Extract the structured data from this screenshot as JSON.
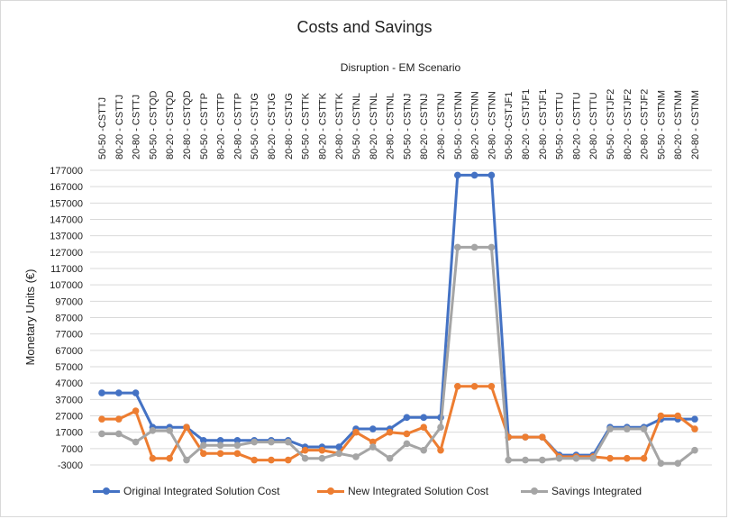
{
  "chart_data": {
    "type": "line",
    "title": "Costs and Savings",
    "subtitle": "Disruption - EM Scenario",
    "xlabel": "",
    "ylabel": "Monetary Units (€)",
    "ylim": [
      -3000,
      177000
    ],
    "yticks": [
      "177000",
      "167000",
      "157000",
      "147000",
      "137000",
      "127000",
      "117000",
      "107000",
      "97000",
      "87000",
      "77000",
      "67000",
      "57000",
      "47000",
      "37000",
      "27000",
      "17000",
      "7000",
      "-3000"
    ],
    "grid": true,
    "legend": "bottom",
    "categories": [
      "50-50 -CSTTJ",
      "80-20 - CSTTJ",
      "20-80 - CSTTJ",
      "50-50 - CSTQD",
      "80-20 - CSTQD",
      "20-80 - CSTQD",
      "50-50 - CSTTP",
      "80-20 - CSTTP",
      "20-80 - CSTTP",
      "50-50 - CSTJG",
      "80-20 - CSTJG",
      "20-80 - CSTJG",
      "50-50 - CSTTK",
      "80-20 - CSTTK",
      "20-80 - CSTTK",
      "50-50 - CSTNL",
      "80-20 - CSTNL",
      "20-80 - CSTNL",
      "50-50 - CSTNJ",
      "80-20 - CSTNJ",
      "20-80 - CSTNJ",
      "50-50 - CSTNN",
      "80-20 - CSTNN",
      "20-80 - CSTNN",
      "50-50 -CSTJF1",
      "80-20 - CSTJF1",
      "20-80 - CSTJF1",
      "50-50 - CSTTU",
      "80-20 - CSTTU",
      "20-80 - CSTTU",
      "50-50 - CSTJF2",
      "80-20 - CSTJF2",
      "20-80 - CSTJF2",
      "50-50 - CSTNM",
      "80-20 - CSTNM",
      "20-80 - CSTNM"
    ],
    "series": [
      {
        "name": "Original Integrated Solution Cost",
        "color": "#4472C4",
        "values": [
          41000,
          41000,
          41000,
          20000,
          20000,
          20000,
          12000,
          12000,
          12000,
          12000,
          12000,
          12000,
          8000,
          8000,
          8000,
          19000,
          19000,
          19000,
          26000,
          26000,
          26000,
          174000,
          174000,
          174000,
          14000,
          14000,
          14000,
          3000,
          3000,
          3000,
          20000,
          20000,
          20000,
          25000,
          25000,
          25000
        ]
      },
      {
        "name": "New Integrated Solution Cost",
        "color": "#ED7D31",
        "values": [
          25000,
          25000,
          30000,
          1000,
          1000,
          20000,
          4000,
          4000,
          4000,
          0,
          0,
          0,
          6000,
          6000,
          4000,
          17000,
          11000,
          17000,
          16000,
          20000,
          6000,
          45000,
          45000,
          45000,
          14000,
          14000,
          14000,
          2000,
          2000,
          2000,
          1000,
          1000,
          1000,
          27000,
          27000,
          19000
        ]
      },
      {
        "name": "Savings Integrated",
        "color": "#A5A5A5",
        "values": [
          16000,
          16000,
          11000,
          18000,
          18000,
          0,
          9000,
          9000,
          9000,
          11000,
          11000,
          11000,
          1000,
          1000,
          4000,
          2000,
          8000,
          1000,
          10000,
          6000,
          20000,
          130000,
          130000,
          130000,
          0,
          0,
          0,
          1000,
          1000,
          1000,
          19000,
          19000,
          19000,
          -2000,
          -2000,
          6000
        ]
      }
    ]
  }
}
